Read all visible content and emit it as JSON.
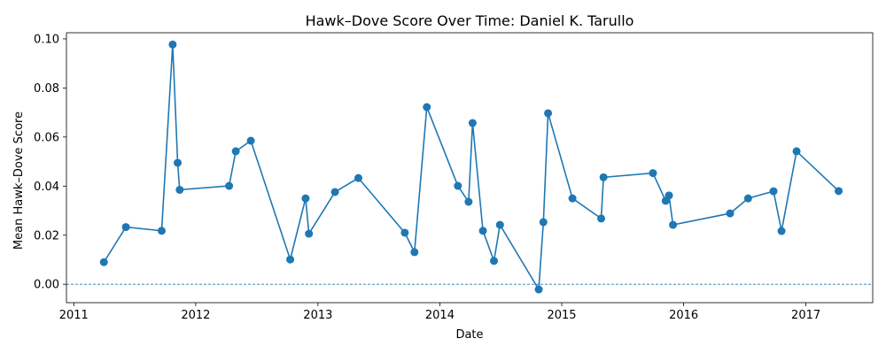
{
  "chart_data": {
    "type": "line",
    "title": "Hawk–Dove Score Over Time: Daniel K. Tarullo",
    "xlabel": "Date",
    "ylabel": "Mean Hawk–Dove Score",
    "xlim": [
      "2010-12-10",
      "2017-07-20"
    ],
    "ylim": [
      -0.0075,
      0.1025
    ],
    "xticks": [
      "2011-01-01",
      "2012-01-01",
      "2013-01-01",
      "2014-01-01",
      "2015-01-01",
      "2016-01-01",
      "2017-01-01"
    ],
    "xtick_labels": [
      "2011",
      "2012",
      "2013",
      "2014",
      "2015",
      "2016",
      "2017"
    ],
    "yticks": [
      0.0,
      0.02,
      0.04,
      0.06,
      0.08,
      0.1
    ],
    "ytick_labels": [
      "0.00",
      "0.02",
      "0.04",
      "0.06",
      "0.08",
      "0.10"
    ],
    "reference_line": {
      "y": 0,
      "style": "dashed"
    },
    "grid": false,
    "series": [
      {
        "color": "#1f77b4",
        "marker": "circle",
        "points": [
          {
            "x": "2011-04-01",
            "y": 0.009
          },
          {
            "x": "2011-06-06",
            "y": 0.0233
          },
          {
            "x": "2011-09-21",
            "y": 0.0218
          },
          {
            "x": "2011-10-24",
            "y": 0.0977
          },
          {
            "x": "2011-11-08",
            "y": 0.0495
          },
          {
            "x": "2011-11-14",
            "y": 0.0385
          },
          {
            "x": "2012-04-10",
            "y": 0.0401
          },
          {
            "x": "2012-04-30",
            "y": 0.0542
          },
          {
            "x": "2012-06-14",
            "y": 0.0585
          },
          {
            "x": "2012-10-10",
            "y": 0.0101
          },
          {
            "x": "2012-11-25",
            "y": 0.035
          },
          {
            "x": "2012-12-05",
            "y": 0.0206
          },
          {
            "x": "2013-02-21",
            "y": 0.0376
          },
          {
            "x": "2013-05-02",
            "y": 0.0433
          },
          {
            "x": "2013-09-18",
            "y": 0.021
          },
          {
            "x": "2013-10-17",
            "y": 0.0131
          },
          {
            "x": "2013-11-23",
            "y": 0.0722
          },
          {
            "x": "2014-02-24",
            "y": 0.0401
          },
          {
            "x": "2014-03-28",
            "y": 0.0336
          },
          {
            "x": "2014-04-09",
            "y": 0.0657
          },
          {
            "x": "2014-05-10",
            "y": 0.0218
          },
          {
            "x": "2014-06-12",
            "y": 0.0095
          },
          {
            "x": "2014-06-30",
            "y": 0.0242
          },
          {
            "x": "2014-10-24",
            "y": -0.0021
          },
          {
            "x": "2014-11-07",
            "y": 0.0253
          },
          {
            "x": "2014-11-21",
            "y": 0.0697
          },
          {
            "x": "2015-02-02",
            "y": 0.035
          },
          {
            "x": "2015-04-29",
            "y": 0.0268
          },
          {
            "x": "2015-05-06",
            "y": 0.0436
          },
          {
            "x": "2015-10-01",
            "y": 0.0453
          },
          {
            "x": "2015-11-08",
            "y": 0.034
          },
          {
            "x": "2015-11-18",
            "y": 0.0362
          },
          {
            "x": "2015-11-30",
            "y": 0.0242
          },
          {
            "x": "2016-05-19",
            "y": 0.0289
          },
          {
            "x": "2016-07-12",
            "y": 0.035
          },
          {
            "x": "2016-09-26",
            "y": 0.0379
          },
          {
            "x": "2016-10-20",
            "y": 0.0217
          },
          {
            "x": "2016-12-04",
            "y": 0.0542
          },
          {
            "x": "2017-04-09",
            "y": 0.038
          }
        ]
      }
    ]
  }
}
